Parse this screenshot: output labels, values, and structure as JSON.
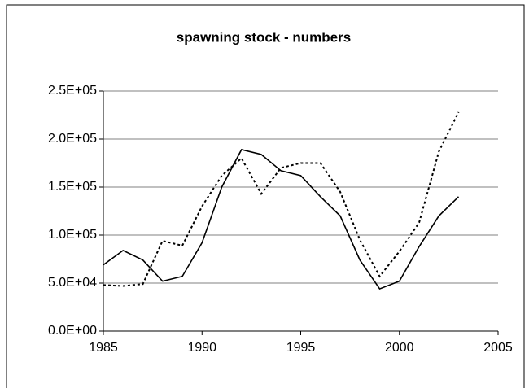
{
  "chart_data": {
    "type": "line",
    "title": "spawning stock - numbers",
    "x": [
      1985,
      1986,
      1987,
      1988,
      1989,
      1990,
      1991,
      1992,
      1993,
      1994,
      1995,
      1996,
      1997,
      1998,
      1999,
      2000,
      2001,
      2002,
      2003
    ],
    "series": [
      {
        "color": "#000000",
        "dash": "solid",
        "values": [
          69000,
          84000,
          74000,
          52000,
          57000,
          92000,
          150000,
          189000,
          184000,
          167000,
          162000,
          140000,
          120000,
          74000,
          44000,
          52000,
          88000,
          120000,
          140000
        ]
      },
      {
        "color": "#000000",
        "dash": "dotted",
        "values": [
          48000,
          47000,
          49000,
          94000,
          89000,
          130000,
          162000,
          180000,
          143000,
          170000,
          175000,
          175000,
          145000,
          95000,
          57000,
          83000,
          113000,
          187000,
          228000
        ]
      }
    ],
    "xlim": [
      1985,
      2005
    ],
    "xticks": [
      1985,
      1990,
      1995,
      2000,
      2005
    ],
    "ylim": [
      0,
      250000
    ],
    "yticks": [
      {
        "value": 0,
        "label": "0.0E+00"
      },
      {
        "value": 50000,
        "label": "5.0E+04"
      },
      {
        "value": 100000,
        "label": "1.0E+05"
      },
      {
        "value": 150000,
        "label": "1.5E+05"
      },
      {
        "value": 200000,
        "label": "2.0E+05"
      },
      {
        "value": 250000,
        "label": "2.5E+05"
      }
    ],
    "grid": true
  }
}
